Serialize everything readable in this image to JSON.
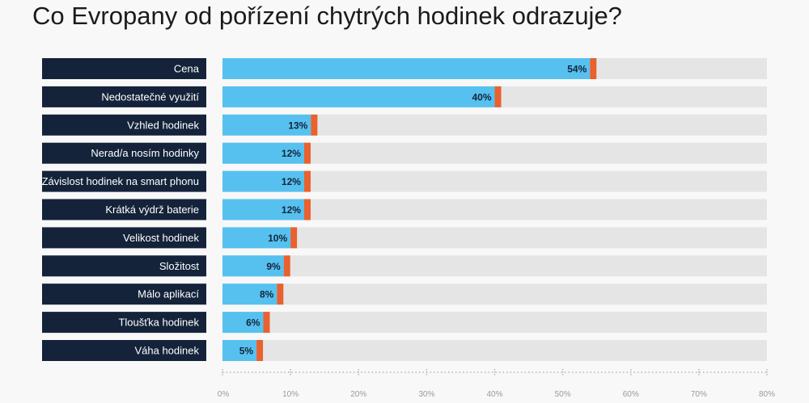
{
  "chart_data": {
    "type": "bar",
    "orientation": "horizontal",
    "title": "Co Evropany od pořízení chytrých hodinek odrazuje?",
    "categories": [
      "Cena",
      "Nedostatečné využití",
      "Vzhled hodinek",
      "Nerad/a nosím hodinky",
      "Závislost hodinek na smart phonu",
      "Krátká výdrž baterie",
      "Velikost hodinek",
      "Složitost",
      "Málo aplikací",
      "Tloušťka hodinek",
      "Váha hodinek"
    ],
    "values": [
      54,
      40,
      13,
      12,
      12,
      12,
      10,
      9,
      8,
      6,
      5
    ],
    "value_labels": [
      "54%",
      "40%",
      "13%",
      "12%",
      "12%",
      "12%",
      "10%",
      "9%",
      "8%",
      "6%",
      "5%"
    ],
    "xlim": [
      0,
      80
    ],
    "x_ticks": [
      "0%",
      "10%",
      "20%",
      "30%",
      "40%",
      "50%",
      "60%",
      "70%",
      "80%"
    ],
    "grid": false,
    "colors": {
      "bar": "#56c1ef",
      "bar_cap": "#e8612f",
      "track": "#e5e5e5",
      "label_box": "#14233a"
    }
  }
}
